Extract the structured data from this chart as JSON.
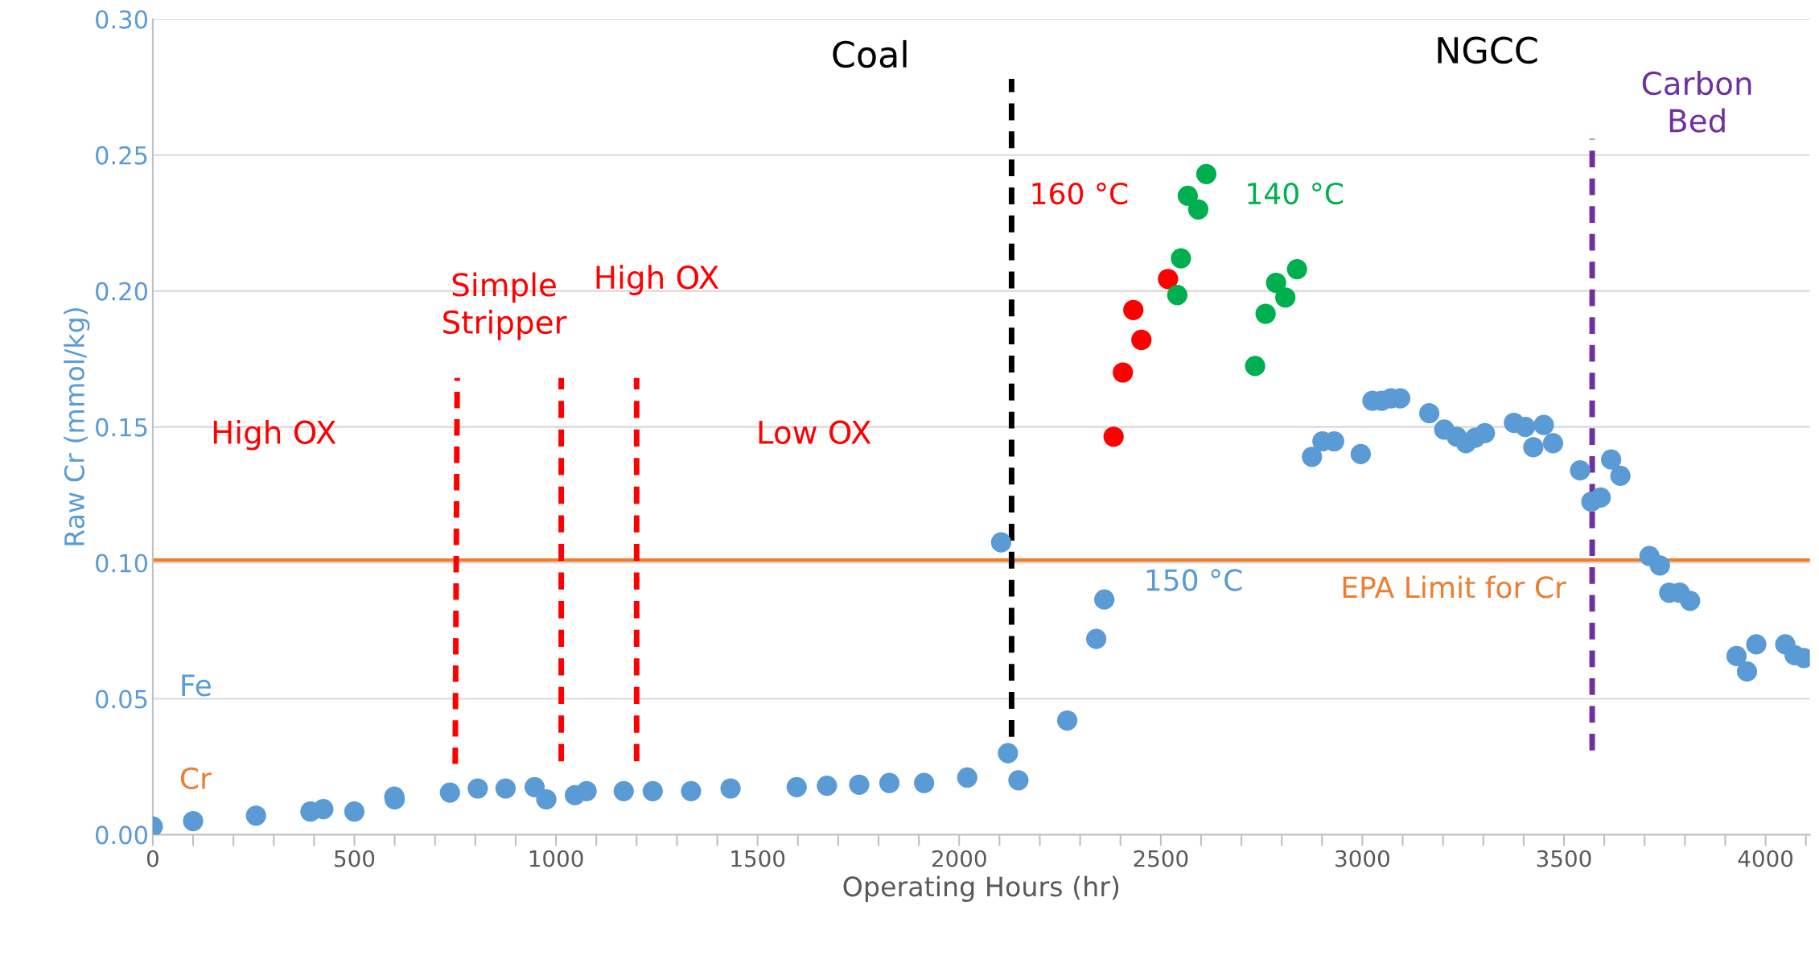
{
  "chart_data": {
    "type": "scatter",
    "xlabel": "Operating Hours (hr)",
    "ylabel": "Raw Cr (mmol/kg)",
    "xlim": [
      0,
      4110
    ],
    "ylim": [
      0,
      0.3
    ],
    "xticks": [
      0,
      {
        "value": 100,
        "label": null
      },
      {
        "value": 200,
        "label": null
      },
      {
        "value": 300,
        "label": null
      },
      {
        "value": 400,
        "label": null
      },
      500,
      {
        "value": 600,
        "label": null
      },
      {
        "value": 700,
        "label": null
      },
      {
        "value": 800,
        "label": null
      },
      {
        "value": 900,
        "label": null
      },
      1000,
      {
        "value": 1100,
        "label": null
      },
      {
        "value": 1200,
        "label": null
      },
      {
        "value": 1300,
        "label": null
      },
      {
        "value": 1400,
        "label": null
      },
      1500,
      {
        "value": 1600,
        "label": null
      },
      {
        "value": 1700,
        "label": null
      },
      {
        "value": 1800,
        "label": null
      },
      {
        "value": 1900,
        "label": null
      },
      2000,
      {
        "value": 2100,
        "label": null
      },
      {
        "value": 2200,
        "label": null
      },
      {
        "value": 2300,
        "label": null
      },
      {
        "value": 2400,
        "label": null
      },
      2500,
      {
        "value": 2600,
        "label": null
      },
      {
        "value": 2700,
        "label": null
      },
      {
        "value": 2800,
        "label": null
      },
      {
        "value": 2900,
        "label": null
      },
      3000,
      {
        "value": 3100,
        "label": null
      },
      {
        "value": 3200,
        "label": null
      },
      {
        "value": 3300,
        "label": null
      },
      {
        "value": 3400,
        "label": null
      },
      3500,
      {
        "value": 3600,
        "label": null
      },
      {
        "value": 3700,
        "label": null
      },
      {
        "value": 3800,
        "label": null
      },
      {
        "value": 3900,
        "label": null
      },
      4000,
      {
        "value": 4100,
        "label": null
      }
    ],
    "yticks": [
      {
        "value": 0,
        "label": "0.00"
      },
      {
        "value": 0.05,
        "label": "0.05"
      },
      {
        "value": 0.1,
        "label": "0.10"
      },
      {
        "value": 0.15,
        "label": "0.15"
      },
      {
        "value": 0.2,
        "label": "0.20"
      },
      {
        "value": 0.25,
        "label": "0.25"
      },
      {
        "value": 0.3,
        "label": "0.30"
      }
    ],
    "grid": "y",
    "marker": "circle",
    "legend": false,
    "ref_lines": [
      {
        "axis": "y",
        "value": 0.101,
        "label": "EPA Limit for Cr",
        "color": "#ed7d31",
        "line_style": "solid"
      }
    ],
    "series": [
      {
        "type": "line",
        "color": "#ff0000",
        "line_style": "dashed",
        "marker": "none",
        "x": [
          750,
          755
        ],
        "values": [
          0.026,
          0.168
        ]
      },
      {
        "type": "line",
        "color": "#ff0000",
        "line_style": "dashed",
        "marker": "none",
        "x": [
          1013,
          1013
        ],
        "values": [
          0.027,
          0.168
        ]
      },
      {
        "type": "line",
        "color": "#ff0000",
        "line_style": "dashed",
        "marker": "none",
        "x": [
          1200,
          1200
        ],
        "values": [
          0.027,
          0.168
        ]
      },
      {
        "type": "line",
        "color": "#000000",
        "line_style": "dashed",
        "marker": "none",
        "x": [
          2130,
          2130
        ],
        "values": [
          0.036,
          0.278
        ]
      },
      {
        "type": "line",
        "color": "#7030a0",
        "line_style": "dashed",
        "marker": "none",
        "x": [
          3570,
          3570
        ],
        "values": [
          0.031,
          0.256
        ]
      },
      {
        "name": "150 °C",
        "color": "#5b9bd5",
        "x": [
          0,
          100,
          256,
          391,
          423,
          500,
          599,
          600,
          737,
          806,
          875,
          947,
          976,
          1047,
          1076,
          1168,
          1240,
          1335,
          1433,
          1597,
          1672,
          1752,
          1827,
          1913,
          2020,
          2104,
          2121,
          2147,
          2268,
          2340,
          2360,
          2875,
          2901,
          2930,
          2996,
          3025,
          3048,
          3071,
          3094,
          3166,
          3203,
          3234,
          3257,
          3280,
          3304,
          3376,
          3404,
          3424,
          3450,
          3473,
          3540,
          3568,
          3591,
          3617,
          3640,
          3712,
          3738,
          3761,
          3787,
          3813,
          3928,
          3954,
          3977,
          4049,
          4072,
          4095
        ],
        "values": [
          0.003,
          0.005,
          0.007,
          0.0085,
          0.0094,
          0.0085,
          0.014,
          0.013,
          0.0155,
          0.017,
          0.017,
          0.0175,
          0.013,
          0.0145,
          0.016,
          0.016,
          0.016,
          0.016,
          0.017,
          0.0175,
          0.018,
          0.0184,
          0.019,
          0.019,
          0.021,
          0.1075,
          0.03,
          0.02,
          0.042,
          0.072,
          0.0865,
          0.139,
          0.1447,
          0.1447,
          0.14,
          0.1596,
          0.1596,
          0.1605,
          0.1605,
          0.155,
          0.149,
          0.1464,
          0.144,
          0.146,
          0.1477,
          0.1515,
          0.15,
          0.1425,
          0.1507,
          0.144,
          0.134,
          0.1225,
          0.124,
          0.138,
          0.132,
          0.1025,
          0.099,
          0.089,
          0.089,
          0.086,
          0.0657,
          0.06,
          0.07,
          0.07,
          0.066,
          0.065
        ]
      },
      {
        "name": "160 °C",
        "color": "#ff0000",
        "x": [
          2383,
          2406,
          2432,
          2452,
          2518
        ],
        "values": [
          0.1464,
          0.17,
          0.193,
          0.182,
          0.2044
        ]
      },
      {
        "name": "140 °C",
        "color": "#00b050",
        "x": [
          2541,
          2550,
          2567,
          2593,
          2613,
          2734,
          2760,
          2786,
          2809,
          2838
        ],
        "values": [
          0.1985,
          0.212,
          0.235,
          0.23,
          0.243,
          0.1724,
          0.1916,
          0.203,
          0.1976,
          0.208
        ]
      }
    ],
    "annotations": [
      "High OX",
      "Simple\nStripper",
      "High OX",
      "Low OX",
      "Coal",
      "NGCC",
      "Carbon\nBed",
      "Fe",
      "Cr"
    ]
  }
}
